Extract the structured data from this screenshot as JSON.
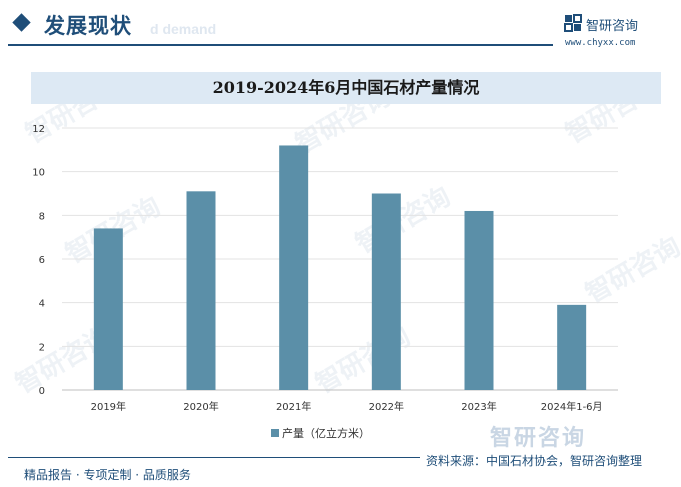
{
  "header": {
    "section_title": "发展现状",
    "section_subtitle_ghost": "d demand",
    "logo_text": "智研咨询",
    "logo_url": "www.chyxx.com"
  },
  "watermark_text": "智研咨询",
  "colors": {
    "brand": "#1f4e79",
    "bar": "#5b8fa8",
    "title_band": "#dde9f4"
  },
  "chart_data": {
    "type": "bar",
    "title": "2019-2024年6月中国石材产量情况",
    "categories": [
      "2019年",
      "2020年",
      "2021年",
      "2022年",
      "2023年",
      "2024年1-6月"
    ],
    "series": [
      {
        "name": "产量（亿立方米）",
        "values": [
          7.4,
          9.1,
          11.2,
          9.0,
          8.2,
          3.9
        ]
      }
    ],
    "ylim": [
      0,
      12
    ],
    "yticks": [
      0,
      2,
      4,
      6,
      8,
      10,
      12
    ],
    "grid": true,
    "legend": "bottom-center"
  },
  "footer": {
    "left": "精品报告 · 专项定制 · 品质服务",
    "source": "资料来源：中国石材协会，智研咨询整理",
    "source_logo": "智研咨询"
  }
}
